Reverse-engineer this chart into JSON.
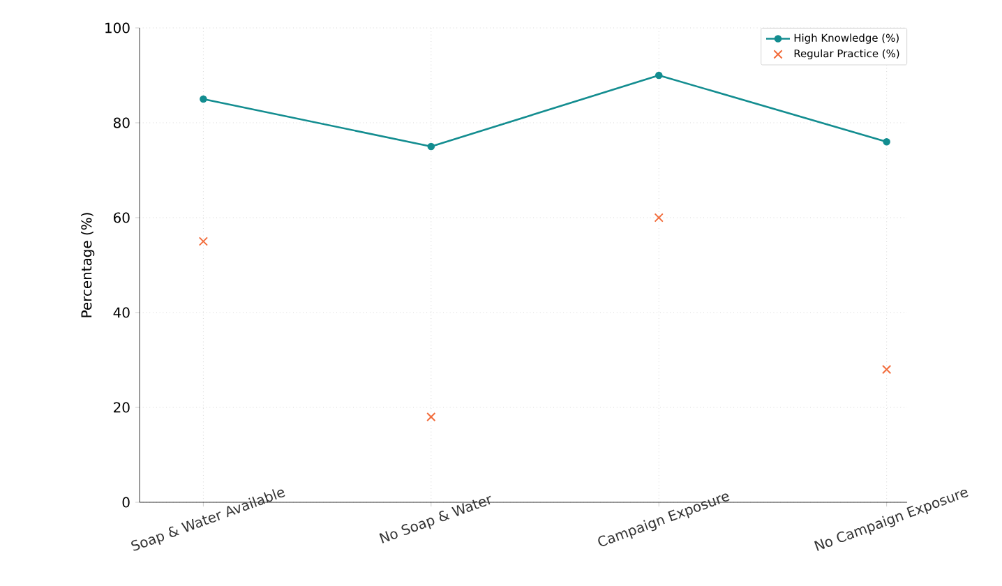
{
  "chart_data": {
    "type": "line",
    "ylabel": "Percentage (%)",
    "categories": [
      "Soap & Water Available",
      "No Soap & Water",
      "Campaign Exposure",
      "No Campaign Exposure"
    ],
    "series": [
      {
        "name": "High Knowledge (%)",
        "color": "#138d90",
        "marker": "circle",
        "values": [
          85,
          75,
          90,
          76
        ]
      },
      {
        "name": "Regular Practice (%)",
        "color": "#f26b3a",
        "type": "scatter",
        "marker": "cross",
        "values": [
          55,
          18,
          60,
          28
        ]
      }
    ],
    "ylim": [
      0,
      100
    ],
    "yticks": [
      0,
      20,
      40,
      60,
      80,
      100
    ],
    "grid": true,
    "legend": "top right"
  }
}
